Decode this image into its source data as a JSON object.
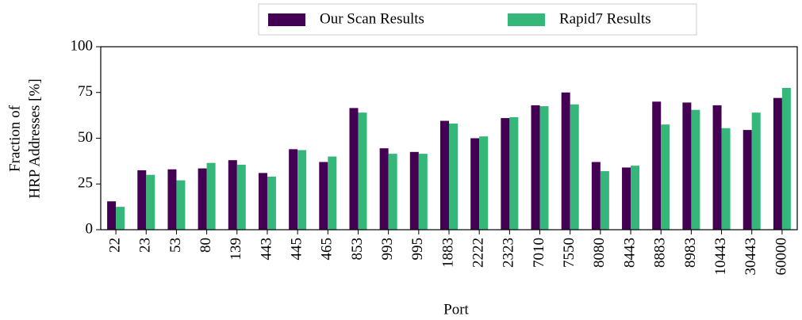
{
  "chart_data": {
    "type": "bar",
    "xlabel": "Port",
    "ylabel": [
      "Fraction of",
      "HRP Addresses [%]"
    ],
    "categories": [
      "22",
      "23",
      "53",
      "80",
      "139",
      "443",
      "445",
      "465",
      "853",
      "993",
      "995",
      "1883",
      "2222",
      "2323",
      "7010",
      "7550",
      "8080",
      "8443",
      "8883",
      "8983",
      "10443",
      "30443",
      "60000"
    ],
    "series": [
      {
        "name": "Our Scan Results",
        "color": "#440154",
        "values": [
          15.5,
          32.5,
          33,
          33.5,
          38,
          31,
          44,
          37,
          66.5,
          44.5,
          42.5,
          59.5,
          50,
          61,
          68,
          75,
          37,
          34,
          70,
          69.5,
          68,
          54.5,
          72
        ]
      },
      {
        "name": "Rapid7 Results",
        "color": "#35b779",
        "values": [
          12.5,
          30,
          27,
          36.5,
          35.5,
          29,
          43.5,
          40,
          64,
          41.5,
          41.5,
          58,
          51,
          61.5,
          67.5,
          68.5,
          32,
          35,
          57.5,
          65.5,
          55.5,
          64,
          77.5
        ]
      }
    ],
    "ylim": [
      0,
      100
    ],
    "yticks": [
      0,
      25,
      50,
      75,
      100
    ],
    "grid": false,
    "legend": "top"
  }
}
